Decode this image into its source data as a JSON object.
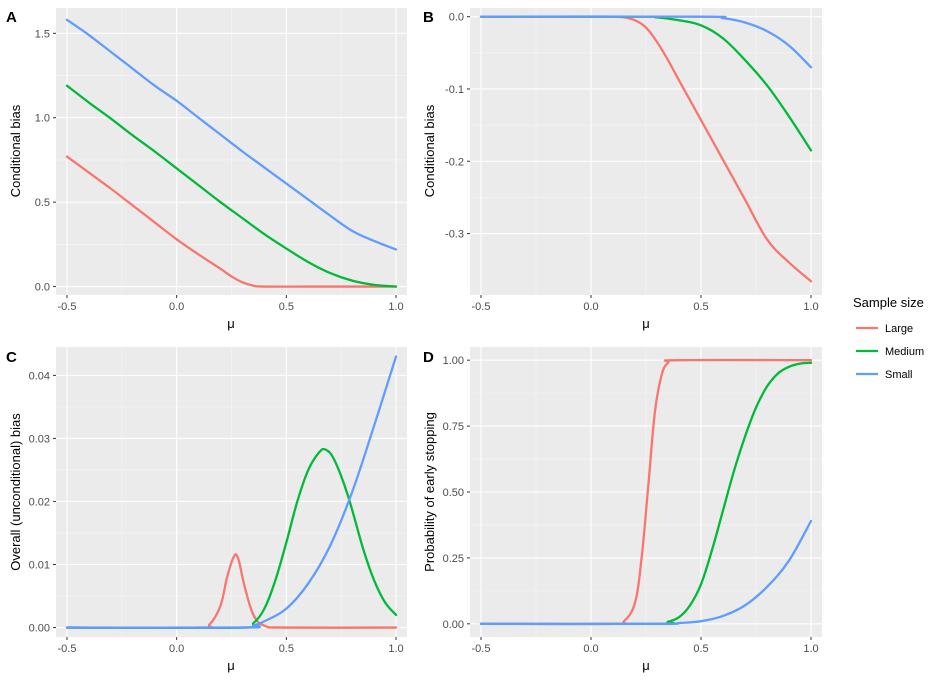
{
  "chart_data": [
    {
      "type": "line",
      "panel": "A",
      "xlabel": "μ",
      "ylabel": "Conditional bias",
      "xlim": [
        -0.55,
        1.05
      ],
      "ylim": [
        -0.05,
        1.65
      ],
      "xticks": [
        -0.5,
        0.0,
        0.5,
        1.0
      ],
      "xtick_labels": [
        "-0.5",
        "0.0",
        "0.5",
        "1.0"
      ],
      "yticks": [
        0.0,
        0.5,
        1.0,
        1.5
      ],
      "ytick_labels": [
        "0.0",
        "0.5",
        "1.0",
        "1.5"
      ],
      "series": [
        {
          "name": "Large",
          "points": [
            [
              -0.5,
              0.77
            ],
            [
              -0.4,
              0.675
            ],
            [
              -0.3,
              0.58
            ],
            [
              -0.2,
              0.48
            ],
            [
              -0.1,
              0.38
            ],
            [
              0.0,
              0.28
            ],
            [
              0.1,
              0.19
            ],
            [
              0.2,
              0.105
            ],
            [
              0.25,
              0.06
            ],
            [
              0.3,
              0.025
            ],
            [
              0.35,
              0.005
            ],
            [
              0.4,
              0.0
            ],
            [
              0.6,
              0.0
            ],
            [
              0.8,
              0.0
            ],
            [
              1.0,
              0.0
            ]
          ]
        },
        {
          "name": "Medium",
          "points": [
            [
              -0.5,
              1.19
            ],
            [
              -0.4,
              1.09
            ],
            [
              -0.3,
              0.995
            ],
            [
              -0.2,
              0.895
            ],
            [
              -0.1,
              0.8
            ],
            [
              0.0,
              0.7
            ],
            [
              0.1,
              0.6
            ],
            [
              0.2,
              0.5
            ],
            [
              0.3,
              0.405
            ],
            [
              0.4,
              0.31
            ],
            [
              0.5,
              0.225
            ],
            [
              0.6,
              0.145
            ],
            [
              0.7,
              0.08
            ],
            [
              0.8,
              0.035
            ],
            [
              0.9,
              0.01
            ],
            [
              1.0,
              0.0
            ]
          ]
        },
        {
          "name": "Small",
          "points": [
            [
              -0.5,
              1.58
            ],
            [
              -0.4,
              1.49
            ],
            [
              -0.3,
              1.39
            ],
            [
              -0.2,
              1.29
            ],
            [
              -0.1,
              1.19
            ],
            [
              0.0,
              1.1
            ],
            [
              0.1,
              1.0
            ],
            [
              0.2,
              0.9
            ],
            [
              0.3,
              0.8
            ],
            [
              0.4,
              0.705
            ],
            [
              0.5,
              0.61
            ],
            [
              0.6,
              0.515
            ],
            [
              0.7,
              0.42
            ],
            [
              0.8,
              0.33
            ],
            [
              0.9,
              0.27
            ],
            [
              1.0,
              0.22
            ]
          ]
        }
      ]
    },
    {
      "type": "line",
      "panel": "B",
      "xlabel": "μ",
      "ylabel": "Conditional bias",
      "xlim": [
        -0.55,
        1.05
      ],
      "ylim": [
        -0.385,
        0.012
      ],
      "xticks": [
        -0.5,
        0.0,
        0.5,
        1.0
      ],
      "xtick_labels": [
        "-0.5",
        "0.0",
        "0.5",
        "1.0"
      ],
      "yticks": [
        0.0,
        -0.1,
        -0.2,
        -0.3
      ],
      "ytick_labels": [
        "0.0",
        "-0.1",
        "-0.2",
        "-0.3"
      ],
      "series": [
        {
          "name": "Large",
          "points": [
            [
              -0.5,
              0.0
            ],
            [
              0.0,
              0.0
            ],
            [
              0.1,
              0.0
            ],
            [
              0.15,
              -0.001
            ],
            [
              0.2,
              -0.005
            ],
            [
              0.25,
              -0.015
            ],
            [
              0.3,
              -0.035
            ],
            [
              0.35,
              -0.06
            ],
            [
              0.4,
              -0.088
            ],
            [
              0.5,
              -0.143
            ],
            [
              0.6,
              -0.198
            ],
            [
              0.7,
              -0.253
            ],
            [
              0.8,
              -0.308
            ],
            [
              0.9,
              -0.34
            ],
            [
              1.0,
              -0.366
            ]
          ]
        },
        {
          "name": "Medium",
          "points": [
            [
              -0.5,
              0.0
            ],
            [
              0.2,
              0.0
            ],
            [
              0.3,
              -0.001
            ],
            [
              0.4,
              -0.005
            ],
            [
              0.5,
              -0.012
            ],
            [
              0.6,
              -0.03
            ],
            [
              0.7,
              -0.06
            ],
            [
              0.8,
              -0.095
            ],
            [
              0.9,
              -0.138
            ],
            [
              1.0,
              -0.185
            ]
          ]
        },
        {
          "name": "Small",
          "points": [
            [
              -0.5,
              0.0
            ],
            [
              0.5,
              0.0
            ],
            [
              0.6,
              -0.002
            ],
            [
              0.7,
              -0.008
            ],
            [
              0.8,
              -0.02
            ],
            [
              0.9,
              -0.04
            ],
            [
              1.0,
              -0.07
            ]
          ]
        }
      ]
    },
    {
      "type": "line",
      "panel": "C",
      "xlabel": "μ",
      "ylabel": "Overall (unconditional) bias",
      "xlim": [
        -0.55,
        1.05
      ],
      "ylim": [
        -0.0015,
        0.0445
      ],
      "xticks": [
        -0.5,
        0.0,
        0.5,
        1.0
      ],
      "xtick_labels": [
        "-0.5",
        "0.0",
        "0.5",
        "1.0"
      ],
      "yticks": [
        0.0,
        0.01,
        0.02,
        0.03,
        0.04
      ],
      "ytick_labels": [
        "0.00",
        "0.01",
        "0.02",
        "0.03",
        "0.04"
      ],
      "series": [
        {
          "name": "Large",
          "points": [
            [
              -0.5,
              0.0
            ],
            [
              0.1,
              0.0
            ],
            [
              0.15,
              0.0005
            ],
            [
              0.2,
              0.0035
            ],
            [
              0.23,
              0.008
            ],
            [
              0.26,
              0.0112
            ],
            [
              0.28,
              0.011
            ],
            [
              0.31,
              0.0065
            ],
            [
              0.35,
              0.002
            ],
            [
              0.4,
              0.0003
            ],
            [
              0.5,
              0.0
            ],
            [
              1.0,
              0.0
            ]
          ]
        },
        {
          "name": "Medium",
          "points": [
            [
              -0.5,
              0.0
            ],
            [
              0.3,
              0.0
            ],
            [
              0.35,
              0.0007
            ],
            [
              0.4,
              0.003
            ],
            [
              0.45,
              0.0075
            ],
            [
              0.5,
              0.0135
            ],
            [
              0.55,
              0.02
            ],
            [
              0.6,
              0.025
            ],
            [
              0.65,
              0.0278
            ],
            [
              0.68,
              0.0282
            ],
            [
              0.72,
              0.0265
            ],
            [
              0.78,
              0.021
            ],
            [
              0.85,
              0.0125
            ],
            [
              0.9,
              0.0075
            ],
            [
              0.95,
              0.004
            ],
            [
              1.0,
              0.002
            ]
          ]
        },
        {
          "name": "Small",
          "points": [
            [
              -0.5,
              0.0
            ],
            [
              0.3,
              0.0
            ],
            [
              0.35,
              0.0003
            ],
            [
              0.4,
              0.001
            ],
            [
              0.5,
              0.003
            ],
            [
              0.6,
              0.007
            ],
            [
              0.7,
              0.013
            ],
            [
              0.8,
              0.0215
            ],
            [
              0.9,
              0.032
            ],
            [
              1.0,
              0.043
            ]
          ]
        }
      ]
    },
    {
      "type": "line",
      "panel": "D",
      "xlabel": "μ",
      "ylabel": "Probability of early stopping",
      "xlim": [
        -0.55,
        1.05
      ],
      "ylim": [
        -0.05,
        1.05
      ],
      "xticks": [
        -0.5,
        0.0,
        0.5,
        1.0
      ],
      "xtick_labels": [
        "-0.5",
        "0.0",
        "0.5",
        "1.0"
      ],
      "yticks": [
        0.0,
        0.25,
        0.5,
        0.75,
        1.0
      ],
      "ytick_labels": [
        "0.00",
        "0.25",
        "0.50",
        "0.75",
        "1.00"
      ],
      "series": [
        {
          "name": "Large",
          "points": [
            [
              -0.5,
              0.0
            ],
            [
              0.1,
              0.0
            ],
            [
              0.15,
              0.01
            ],
            [
              0.2,
              0.08
            ],
            [
              0.23,
              0.25
            ],
            [
              0.26,
              0.52
            ],
            [
              0.29,
              0.8
            ],
            [
              0.32,
              0.94
            ],
            [
              0.35,
              0.99
            ],
            [
              0.4,
              1.0
            ],
            [
              1.0,
              1.0
            ]
          ]
        },
        {
          "name": "Medium",
          "points": [
            [
              -0.5,
              0.0
            ],
            [
              0.3,
              0.0
            ],
            [
              0.35,
              0.008
            ],
            [
              0.4,
              0.025
            ],
            [
              0.45,
              0.07
            ],
            [
              0.5,
              0.15
            ],
            [
              0.55,
              0.28
            ],
            [
              0.6,
              0.43
            ],
            [
              0.65,
              0.58
            ],
            [
              0.7,
              0.71
            ],
            [
              0.75,
              0.82
            ],
            [
              0.8,
              0.9
            ],
            [
              0.85,
              0.95
            ],
            [
              0.9,
              0.975
            ],
            [
              0.95,
              0.987
            ],
            [
              1.0,
              0.99
            ]
          ]
        },
        {
          "name": "Small",
          "points": [
            [
              -0.5,
              0.0
            ],
            [
              0.3,
              0.0
            ],
            [
              0.4,
              0.003
            ],
            [
              0.5,
              0.01
            ],
            [
              0.6,
              0.03
            ],
            [
              0.7,
              0.07
            ],
            [
              0.8,
              0.14
            ],
            [
              0.9,
              0.24
            ],
            [
              1.0,
              0.39
            ]
          ]
        }
      ]
    }
  ],
  "legend": {
    "title": "Sample size",
    "entries": [
      {
        "name": "Large",
        "color": "#f8766d"
      },
      {
        "name": "Medium",
        "color": "#00ba38"
      },
      {
        "name": "Small",
        "color": "#619cff"
      }
    ]
  },
  "panels": [
    {
      "tag": "A",
      "x_title": "μ",
      "y_title": "Conditional bias"
    },
    {
      "tag": "B",
      "x_title": "μ",
      "y_title": "Conditional bias"
    },
    {
      "tag": "C",
      "x_title": "μ",
      "y_title": "Overall (unconditional) bias"
    },
    {
      "tag": "D",
      "x_title": "μ",
      "y_title": "Probability of early stopping"
    }
  ]
}
